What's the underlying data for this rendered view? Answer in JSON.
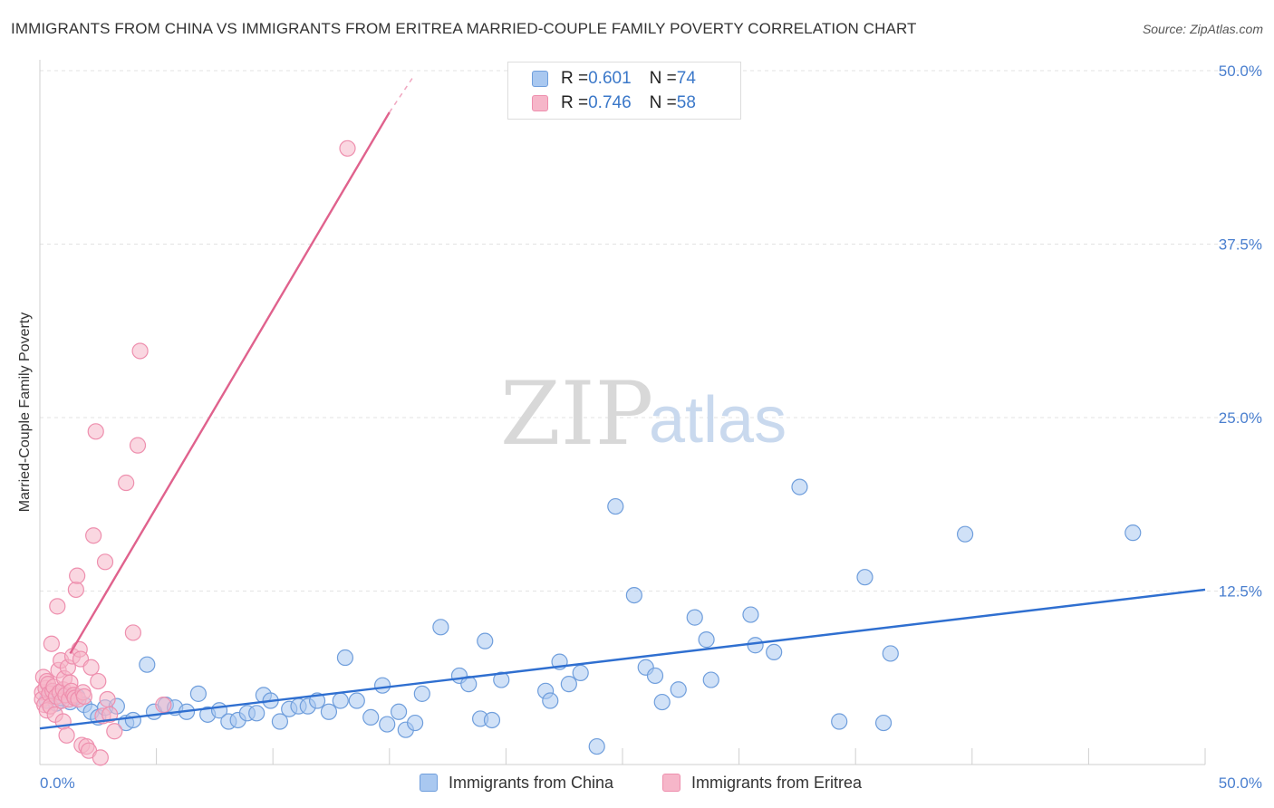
{
  "title": "IMMIGRANTS FROM CHINA VS IMMIGRANTS FROM ERITREA MARRIED-COUPLE FAMILY POVERTY CORRELATION CHART",
  "source": "Source: ZipAtlas.com",
  "watermark": {
    "zip": "ZIP",
    "atlas": "atlas"
  },
  "legend": {
    "china": {
      "r_label": "R = ",
      "r_value": "0.601",
      "n_label": "N = ",
      "n_value": "74"
    },
    "eritrea": {
      "r_label": "R = ",
      "r_value": "0.746",
      "n_label": "N = ",
      "n_value": "58"
    }
  },
  "colors": {
    "china_fill": "#a9c8f0",
    "china_stroke": "#6f9edc",
    "china_line": "#2f6fd0",
    "eritrea_fill": "#f6b6c9",
    "eritrea_stroke": "#ee8fae",
    "eritrea_line": "#e0628d",
    "grid": "#e3e3e3",
    "axis_text": "#4a7fcf"
  },
  "chart_data": {
    "type": "scatter",
    "title": "IMMIGRANTS FROM CHINA VS IMMIGRANTS FROM ERITREA MARRIED-COUPLE FAMILY POVERTY CORRELATION CHART",
    "xlabel": "",
    "ylabel": "Married-Couple Family Poverty",
    "xlim": [
      0,
      50
    ],
    "ylim": [
      0,
      50
    ],
    "x_tick_labels": {
      "left": "0.0%",
      "right": "50.0%"
    },
    "x_minor_ticks": [
      5,
      10,
      15,
      20,
      25,
      30,
      35,
      40,
      45,
      50
    ],
    "y_ticks": [
      12.5,
      25.0,
      37.5,
      50.0
    ],
    "y_tick_labels": [
      "12.5%",
      "25.0%",
      "37.5%",
      "50.0%"
    ],
    "grid": true,
    "legend_position": "top-center",
    "series": [
      {
        "name": "Immigrants from China",
        "r": 0.601,
        "n": 74,
        "trend": {
          "x": [
            0,
            50
          ],
          "y": [
            2.6,
            12.6
          ]
        },
        "points": [
          [
            0.3,
            4.6
          ],
          [
            0.5,
            5.2
          ],
          [
            0.7,
            4.4
          ],
          [
            0.9,
            4.8
          ],
          [
            1.1,
            5.0
          ],
          [
            1.3,
            4.5
          ],
          [
            1.6,
            4.9
          ],
          [
            1.9,
            4.3
          ],
          [
            2.2,
            3.8
          ],
          [
            2.5,
            3.4
          ],
          [
            2.8,
            4.1
          ],
          [
            3.3,
            4.2
          ],
          [
            3.7,
            3.0
          ],
          [
            4.0,
            3.2
          ],
          [
            4.6,
            7.2
          ],
          [
            4.9,
            3.8
          ],
          [
            5.4,
            4.3
          ],
          [
            5.8,
            4.1
          ],
          [
            6.3,
            3.8
          ],
          [
            6.8,
            5.1
          ],
          [
            7.2,
            3.6
          ],
          [
            7.7,
            3.9
          ],
          [
            8.1,
            3.1
          ],
          [
            8.5,
            3.2
          ],
          [
            8.9,
            3.7
          ],
          [
            9.3,
            3.7
          ],
          [
            9.6,
            5.0
          ],
          [
            9.9,
            4.6
          ],
          [
            10.3,
            3.1
          ],
          [
            10.7,
            4.0
          ],
          [
            11.1,
            4.2
          ],
          [
            11.5,
            4.2
          ],
          [
            11.9,
            4.6
          ],
          [
            12.4,
            3.8
          ],
          [
            12.9,
            4.6
          ],
          [
            13.1,
            7.7
          ],
          [
            13.6,
            4.6
          ],
          [
            14.2,
            3.4
          ],
          [
            14.7,
            5.7
          ],
          [
            14.9,
            2.9
          ],
          [
            15.4,
            3.8
          ],
          [
            15.7,
            2.5
          ],
          [
            16.1,
            3.0
          ],
          [
            16.4,
            5.1
          ],
          [
            17.2,
            9.9
          ],
          [
            18.0,
            6.4
          ],
          [
            18.4,
            5.8
          ],
          [
            18.9,
            3.3
          ],
          [
            19.1,
            8.9
          ],
          [
            19.4,
            3.2
          ],
          [
            19.8,
            6.1
          ],
          [
            21.7,
            5.3
          ],
          [
            21.9,
            4.6
          ],
          [
            22.3,
            7.4
          ],
          [
            22.7,
            5.8
          ],
          [
            23.2,
            6.6
          ],
          [
            23.9,
            1.3
          ],
          [
            24.7,
            18.6
          ],
          [
            25.5,
            12.2
          ],
          [
            26.0,
            7.0
          ],
          [
            26.4,
            6.4
          ],
          [
            26.7,
            4.5
          ],
          [
            27.4,
            5.4
          ],
          [
            28.1,
            10.6
          ],
          [
            28.6,
            9.0
          ],
          [
            28.8,
            6.1
          ],
          [
            30.5,
            10.8
          ],
          [
            30.7,
            8.6
          ],
          [
            31.5,
            8.1
          ],
          [
            32.6,
            20.0
          ],
          [
            34.3,
            3.1
          ],
          [
            35.4,
            13.5
          ],
          [
            36.2,
            3.0
          ],
          [
            36.5,
            8.0
          ],
          [
            39.7,
            16.6
          ],
          [
            46.9,
            16.7
          ]
        ]
      },
      {
        "name": "Immigrants from Eritrea",
        "r": 0.746,
        "n": 58,
        "trend": {
          "x": [
            1.3,
            15.0
          ],
          "y": [
            8.0,
            47.0
          ]
        },
        "trend_dashed": {
          "x": [
            15.0,
            16.0
          ],
          "y": [
            47.0,
            49.5
          ]
        },
        "points": [
          [
            0.1,
            5.2
          ],
          [
            0.1,
            4.7
          ],
          [
            0.15,
            6.3
          ],
          [
            0.2,
            4.3
          ],
          [
            0.25,
            5.5
          ],
          [
            0.3,
            6.0
          ],
          [
            0.3,
            3.9
          ],
          [
            0.35,
            5.8
          ],
          [
            0.4,
            5.1
          ],
          [
            0.45,
            4.2
          ],
          [
            0.5,
            8.7
          ],
          [
            0.55,
            5.3
          ],
          [
            0.6,
            5.6
          ],
          [
            0.65,
            3.6
          ],
          [
            0.7,
            4.9
          ],
          [
            0.75,
            11.4
          ],
          [
            0.8,
            6.8
          ],
          [
            0.85,
            5.2
          ],
          [
            0.9,
            7.5
          ],
          [
            0.95,
            4.6
          ],
          [
            1.0,
            5.4
          ],
          [
            1.0,
            3.1
          ],
          [
            1.05,
            6.2
          ],
          [
            1.1,
            5.0
          ],
          [
            1.15,
            2.1
          ],
          [
            1.2,
            7.0
          ],
          [
            1.25,
            4.7
          ],
          [
            1.3,
            5.9
          ],
          [
            1.35,
            5.3
          ],
          [
            1.4,
            7.8
          ],
          [
            1.45,
            5.0
          ],
          [
            1.5,
            4.8
          ],
          [
            1.55,
            12.6
          ],
          [
            1.6,
            13.6
          ],
          [
            1.65,
            4.7
          ],
          [
            1.7,
            8.3
          ],
          [
            1.75,
            7.6
          ],
          [
            1.8,
            1.4
          ],
          [
            1.85,
            5.2
          ],
          [
            1.9,
            4.9
          ],
          [
            2.0,
            1.3
          ],
          [
            2.1,
            1.0
          ],
          [
            2.2,
            7.0
          ],
          [
            2.3,
            16.5
          ],
          [
            2.4,
            24.0
          ],
          [
            2.5,
            6.0
          ],
          [
            2.6,
            0.5
          ],
          [
            2.7,
            3.5
          ],
          [
            2.8,
            14.6
          ],
          [
            2.9,
            4.7
          ],
          [
            3.0,
            3.6
          ],
          [
            3.2,
            2.4
          ],
          [
            3.7,
            20.3
          ],
          [
            4.0,
            9.5
          ],
          [
            4.2,
            23.0
          ],
          [
            4.3,
            29.8
          ],
          [
            5.3,
            4.3
          ],
          [
            13.2,
            44.4
          ]
        ]
      }
    ]
  },
  "bottom_legend": {
    "china": "Immigrants from China",
    "eritrea": "Immigrants from Eritrea"
  }
}
